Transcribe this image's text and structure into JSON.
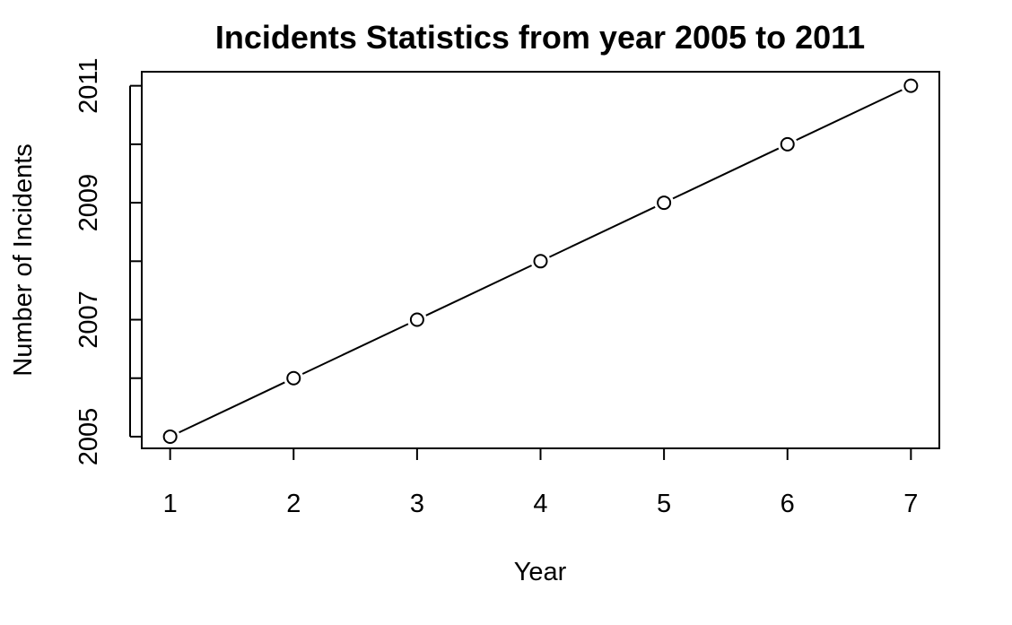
{
  "chart_data": {
    "type": "line",
    "title": "Incidents Statistics from year 2005 to 2011",
    "xlabel": "Year",
    "ylabel": "Number of Incidents",
    "x": [
      1,
      2,
      3,
      4,
      5,
      6,
      7
    ],
    "series": [
      {
        "values": [
          2005,
          2006,
          2007,
          2008,
          2009,
          2010,
          2011
        ]
      }
    ],
    "xlim": [
      0.77,
      7.23
    ],
    "ylim": [
      2004.8,
      2011.24
    ],
    "x_ticks": [
      1,
      2,
      3,
      4,
      5,
      6,
      7
    ],
    "y_ticks": [
      2005,
      2006,
      2007,
      2008,
      2009,
      2010,
      2011
    ],
    "y_tick_labels": [
      "2005",
      "",
      "2007",
      "",
      "2009",
      "",
      "2011"
    ],
    "marker": "open-circle",
    "line_color": "#000000",
    "grid": false,
    "legend": "none"
  }
}
